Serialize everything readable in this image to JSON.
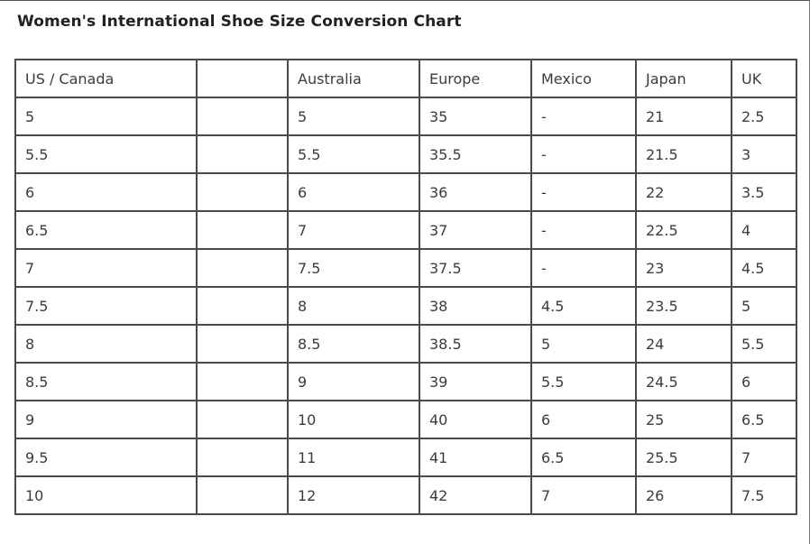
{
  "title": "Women's International Shoe Size Conversion Chart",
  "table": {
    "headers": [
      "US / Canada",
      "",
      "Australia",
      "Europe",
      "Mexico",
      "Japan",
      "UK"
    ],
    "rows": [
      [
        "5",
        "",
        "5",
        "35",
        "-",
        "21",
        "2.5"
      ],
      [
        "5.5",
        "",
        "5.5",
        "35.5",
        "-",
        "21.5",
        "3"
      ],
      [
        "6",
        "",
        "6",
        "36",
        "-",
        "22",
        "3.5"
      ],
      [
        "6.5",
        "",
        "7",
        "37",
        "-",
        "22.5",
        "4"
      ],
      [
        "7",
        "",
        "7.5",
        "37.5",
        "-",
        "23",
        "4.5"
      ],
      [
        "7.5",
        "",
        "8",
        "38",
        "4.5",
        "23.5",
        "5"
      ],
      [
        "8",
        "",
        "8.5",
        "38.5",
        "5",
        "24",
        "5.5"
      ],
      [
        "8.5",
        "",
        "9",
        "39",
        "5.5",
        "24.5",
        "6"
      ],
      [
        "9",
        "",
        "10",
        "40",
        "6",
        "25",
        "6.5"
      ],
      [
        "9.5",
        "",
        "11",
        "41",
        "6.5",
        "25.5",
        "7"
      ],
      [
        "10",
        "",
        "12",
        "42",
        "7",
        "26",
        "7.5"
      ]
    ]
  }
}
